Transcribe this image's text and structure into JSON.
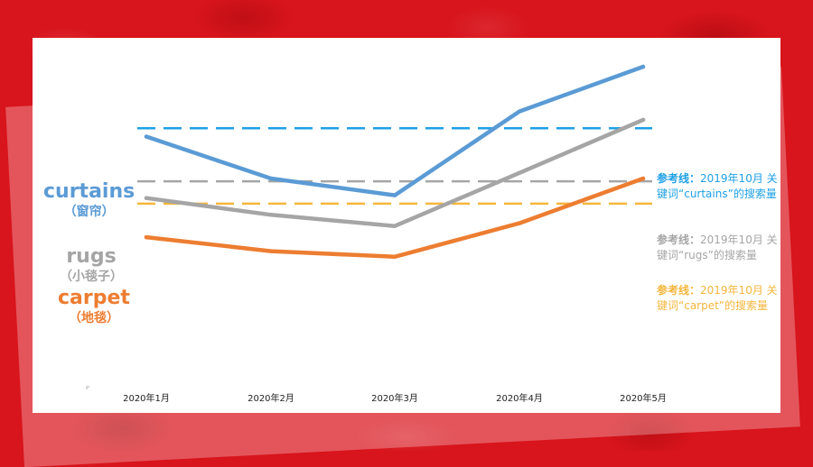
{
  "chart_data": {
    "type": "line",
    "categories": [
      "2020年1月",
      "2020年2月",
      "2020年3月",
      "2020年4月",
      "2020年5月"
    ],
    "ylim": [
      0,
      100
    ],
    "grid": false,
    "series": [
      {
        "name": "curtains",
        "name_cn": "（窗帘）",
        "color": "#5b9bd5",
        "values": [
          75,
          60,
          54,
          84,
          100
        ]
      },
      {
        "name": "rugs",
        "name_cn": "（小毯子）",
        "color": "#a5a5a5",
        "values": [
          53,
          47,
          43,
          62,
          81
        ]
      },
      {
        "name": "carpet",
        "name_cn": "（地毯）",
        "color": "#ed7d31",
        "values": [
          39,
          34,
          32,
          44,
          60
        ]
      }
    ],
    "reference_lines": [
      {
        "series": "curtains",
        "value": 78,
        "color": "#1ea0e6",
        "label_bold": "参考线：",
        "label_rest": "2019年10月 关键词“curtains”的搜索量"
      },
      {
        "series": "rugs",
        "value": 59,
        "color": "#a5a5a5",
        "label_bold": "参考线：",
        "label_rest": "2019年10月 关键词“rugs”的搜索量"
      },
      {
        "series": "carpet",
        "value": 51,
        "color": "#f5b63c",
        "label_bold": "参考线：",
        "label_rest": "2019年10月 关键词“carpet”的搜索量"
      }
    ]
  }
}
